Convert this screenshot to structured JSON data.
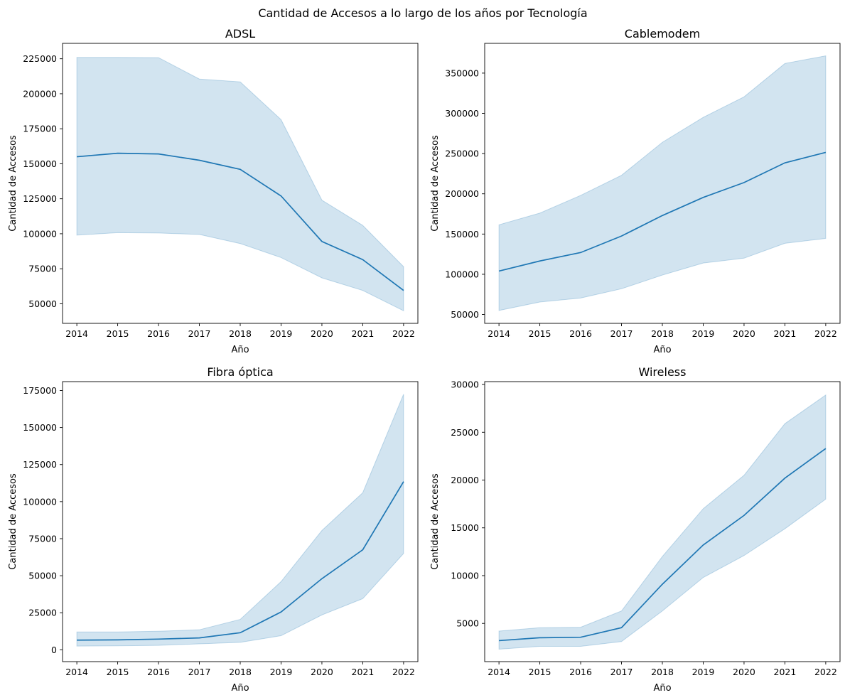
{
  "figure": {
    "suptitle": "Cantidad de Accesos a lo largo de los años por Tecnología"
  },
  "style": {
    "line_color": "#1f77b4",
    "band_color": "#1f77b4",
    "band_opacity": 0.2
  },
  "chart_data": [
    {
      "type": "line",
      "title": "ADSL",
      "xlabel": "Año",
      "ylabel": "Cantidad de Accesos",
      "x": [
        2014,
        2015,
        2016,
        2017,
        2018,
        2019,
        2020,
        2021,
        2022
      ],
      "y": [
        155000,
        157500,
        157000,
        152500,
        146000,
        127000,
        94500,
        81500,
        59500
      ],
      "ci_upper": [
        226000,
        226000,
        225800,
        210500,
        208500,
        181500,
        124000,
        106000,
        76500
      ],
      "ci_lower": [
        99000,
        100800,
        100500,
        99500,
        93000,
        83000,
        68500,
        59500,
        45000
      ],
      "ylim": [
        36000,
        236000
      ],
      "yticks": [
        50000,
        75000,
        100000,
        125000,
        150000,
        175000,
        200000,
        225000
      ]
    },
    {
      "type": "line",
      "title": "Cablemodem",
      "xlabel": "Año",
      "ylabel": "Cantidad de Accesos",
      "x": [
        2014,
        2015,
        2016,
        2017,
        2018,
        2019,
        2020,
        2021,
        2022
      ],
      "y": [
        104000,
        116500,
        127000,
        147500,
        173000,
        195500,
        214000,
        238500,
        251500
      ],
      "ci_upper": [
        161500,
        176000,
        198000,
        223000,
        264000,
        295000,
        320500,
        362000,
        371500
      ],
      "ci_lower": [
        55000,
        65500,
        70500,
        82000,
        99000,
        114000,
        120000,
        138500,
        144500
      ],
      "ylim": [
        39000,
        387000
      ],
      "yticks": [
        50000,
        100000,
        150000,
        200000,
        250000,
        300000,
        350000
      ]
    },
    {
      "type": "line",
      "title": "Fibra óptica",
      "xlabel": "Año",
      "ylabel": "Cantidad de Accesos",
      "x": [
        2014,
        2015,
        2016,
        2017,
        2018,
        2019,
        2020,
        2021,
        2022
      ],
      "y": [
        6500,
        6700,
        7200,
        8000,
        11500,
        25500,
        48000,
        67500,
        113500
      ],
      "ci_upper": [
        12000,
        12000,
        12500,
        13500,
        20500,
        46000,
        80500,
        106000,
        172500
      ],
      "ci_lower": [
        2500,
        2700,
        3000,
        4000,
        5000,
        9500,
        23500,
        34500,
        65000
      ],
      "ylim": [
        -8000,
        181000
      ],
      "yticks": [
        0,
        25000,
        50000,
        75000,
        100000,
        125000,
        150000,
        175000
      ]
    },
    {
      "type": "line",
      "title": "Wireless",
      "xlabel": "Año",
      "ylabel": "Cantidad de Accesos",
      "x": [
        2014,
        2015,
        2016,
        2017,
        2018,
        2019,
        2020,
        2021,
        2022
      ],
      "y": [
        3200,
        3500,
        3550,
        4550,
        9100,
        13200,
        16300,
        20200,
        23300
      ],
      "ci_upper": [
        4200,
        4550,
        4600,
        6300,
        12000,
        17000,
        20500,
        25900,
        28900
      ],
      "ci_lower": [
        2300,
        2600,
        2600,
        3100,
        6300,
        9800,
        12100,
        14900,
        18000
      ],
      "ylim": [
        1000,
        30300
      ],
      "yticks": [
        5000,
        10000,
        15000,
        20000,
        25000,
        30000
      ]
    }
  ]
}
